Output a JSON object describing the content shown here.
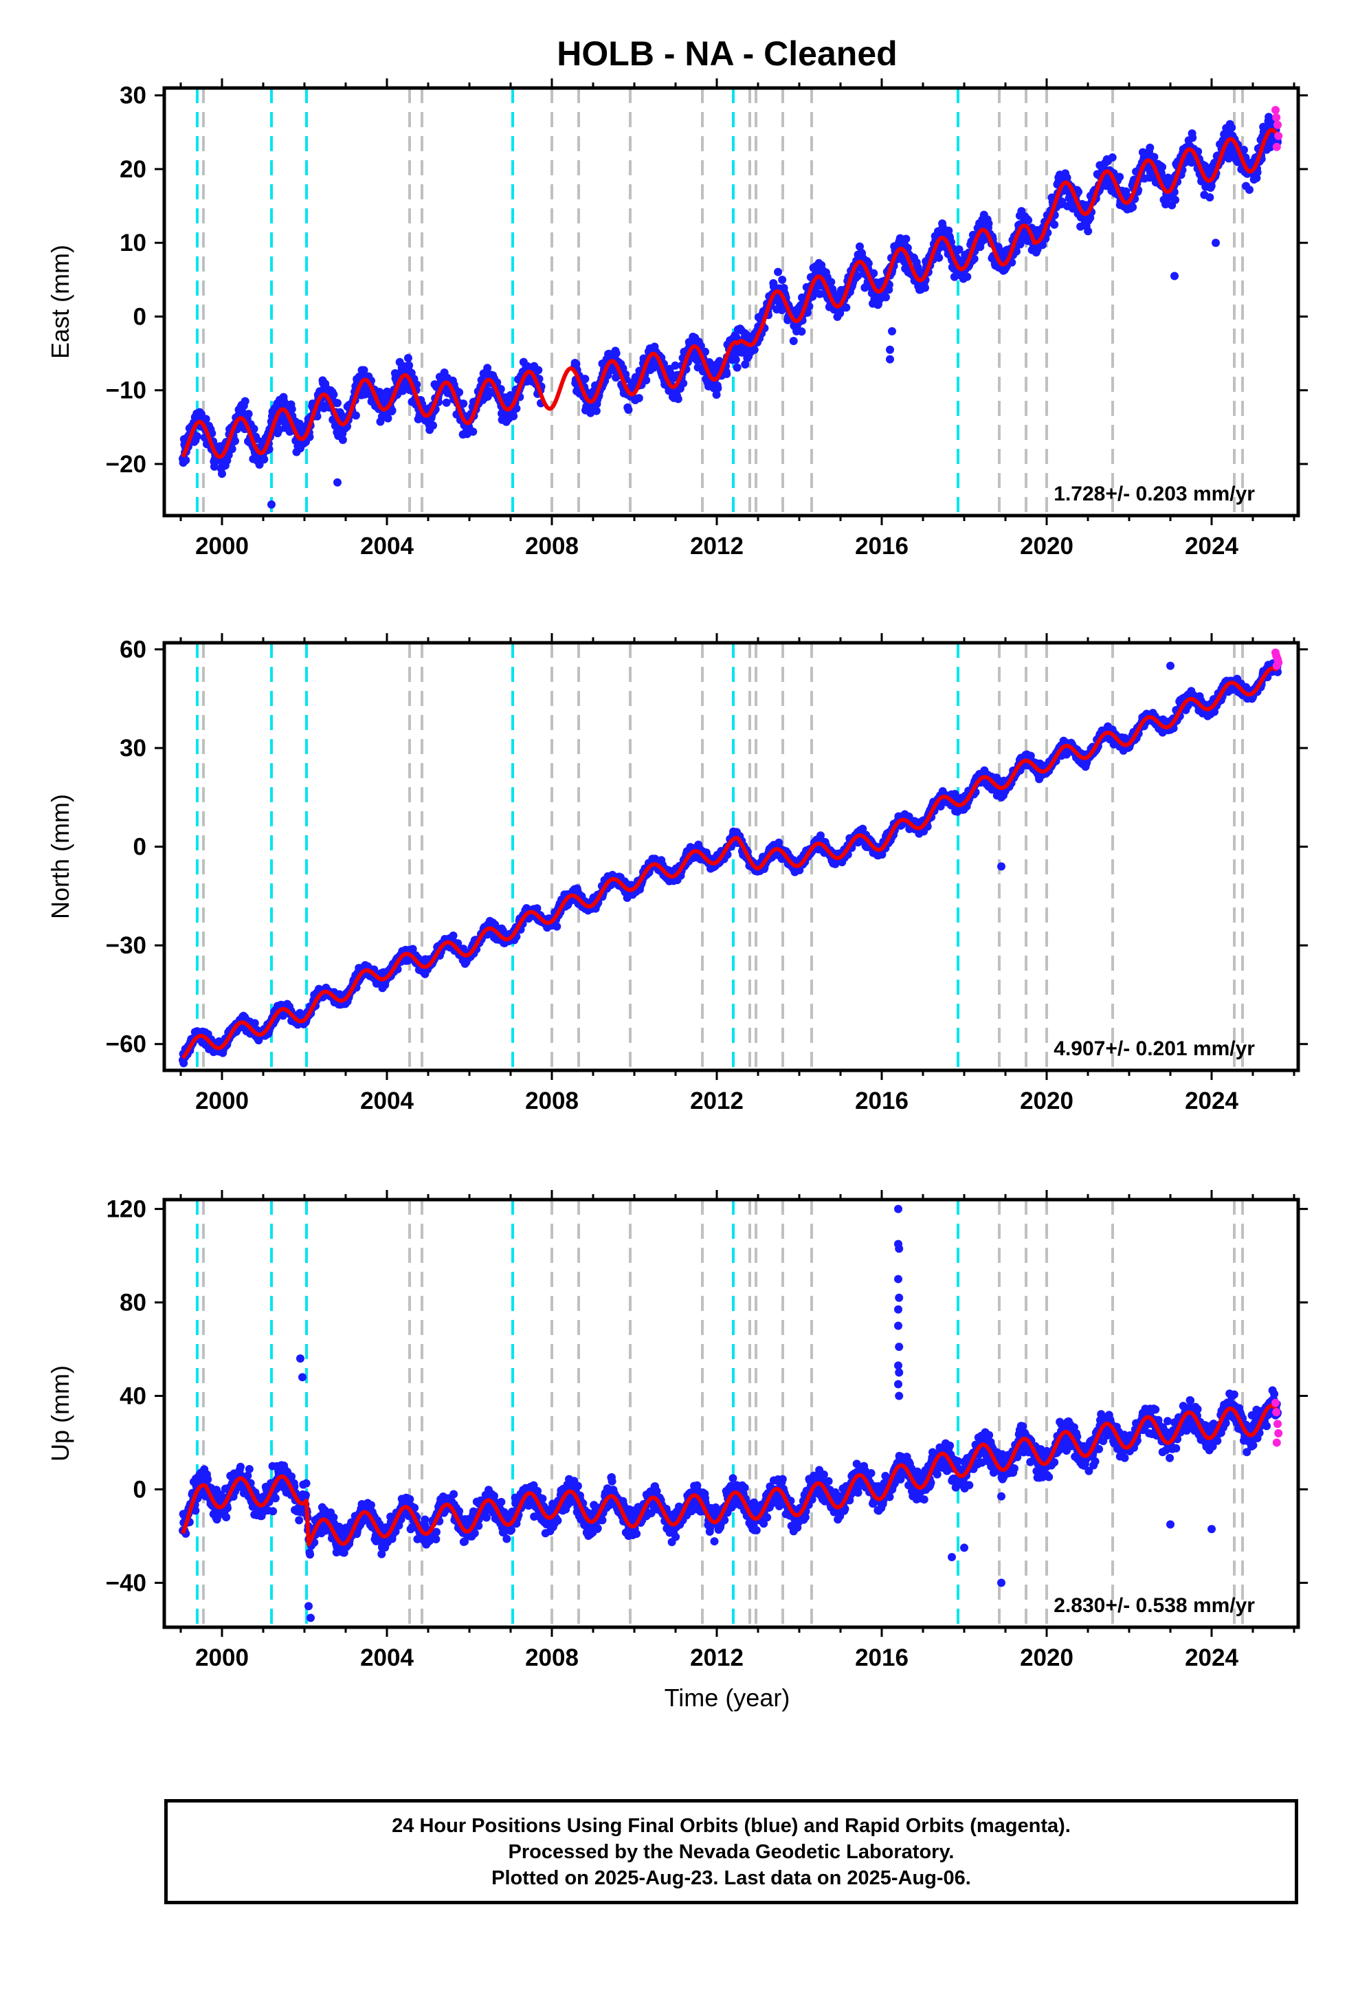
{
  "title": "HOLB  - NA - Cleaned",
  "x_axis_label": "Time (year)",
  "footer": {
    "line1": "24 Hour Positions Using Final Orbits (blue) and Rapid Orbits (magenta).",
    "line2": "Processed by the Nevada Geodetic Laboratory.",
    "line3": "Plotted on 2025-Aug-23. Last data on 2025-Aug-06."
  },
  "colors": {
    "final_orbits": "#1a1aff",
    "rapid_orbits": "#ff22dd",
    "model_fit": "#ee0000",
    "antenna_change_lines": "#00e5ee",
    "earthquake_lines": "#c0c0c0"
  },
  "chart_data": [
    {
      "type": "scatter",
      "component": "East",
      "ylabel": "East (mm)",
      "xlim": [
        1998.6,
        2026.1
      ],
      "ylim": [
        -27,
        31
      ],
      "xticks": [
        2000,
        2004,
        2008,
        2012,
        2016,
        2020,
        2024
      ],
      "yticks": [
        -20,
        -10,
        0,
        10,
        20,
        30
      ],
      "rate_label": "1.728+/- 0.203 mm/yr",
      "data_span": [
        1999.05,
        2025.6
      ],
      "trend_model": {
        "anchor_points": [
          [
            1999.05,
            -17
          ],
          [
            2001.0,
            -16
          ],
          [
            2002.0,
            -14
          ],
          [
            2004.0,
            -10
          ],
          [
            2006.0,
            -12
          ],
          [
            2007.0,
            -10
          ],
          [
            2008.0,
            -10
          ],
          [
            2010.0,
            -8
          ],
          [
            2012.0,
            -6
          ],
          [
            2012.5,
            -6
          ],
          [
            2013.0,
            0
          ],
          [
            2016.0,
            6
          ],
          [
            2018.0,
            9
          ],
          [
            2019.7,
            10
          ],
          [
            2020.0,
            15
          ],
          [
            2022.0,
            18
          ],
          [
            2024.0,
            21
          ],
          [
            2025.6,
            23
          ]
        ],
        "seasonal_amplitude": 2.5,
        "scatter_sd": 1.8
      },
      "outliers": [
        [
          2016.2,
          -5.8
        ],
        [
          2016.2,
          -4.5
        ],
        [
          2016.25,
          -2
        ],
        [
          2023.1,
          5.5
        ],
        [
          2024.1,
          10
        ],
        [
          2002.8,
          -22.5
        ],
        [
          2001.2,
          -25.5
        ]
      ],
      "rapid_points": [
        [
          2025.55,
          28
        ],
        [
          2025.57,
          27
        ],
        [
          2025.6,
          26
        ],
        [
          2025.62,
          24.5
        ],
        [
          2025.58,
          23
        ]
      ]
    },
    {
      "type": "scatter",
      "component": "North",
      "ylabel": "North (mm)",
      "xlim": [
        1998.6,
        2026.1
      ],
      "ylim": [
        -68,
        62
      ],
      "xticks": [
        2000,
        2004,
        2008,
        2012,
        2016,
        2020,
        2024
      ],
      "yticks": [
        -60,
        -30,
        0,
        30,
        60
      ],
      "rate_label": "4.907+/- 0.201 mm/yr",
      "data_span": [
        1999.05,
        2025.6
      ],
      "trend_model": {
        "anchor_points": [
          [
            1999.05,
            -62
          ],
          [
            2002.0,
            -50
          ],
          [
            2004.0,
            -37
          ],
          [
            2006.0,
            -30
          ],
          [
            2008.0,
            -20
          ],
          [
            2010.0,
            -10
          ],
          [
            2012.0,
            -2
          ],
          [
            2012.5,
            0
          ],
          [
            2013.0,
            -4
          ],
          [
            2014.0,
            -3
          ],
          [
            2016.0,
            2
          ],
          [
            2018.0,
            16
          ],
          [
            2020.0,
            26
          ],
          [
            2022.0,
            34
          ],
          [
            2024.0,
            45
          ],
          [
            2025.6,
            52
          ]
        ],
        "seasonal_amplitude": 2.8,
        "scatter_sd": 1.8
      },
      "outliers": [
        [
          2018.9,
          -6
        ],
        [
          2018.9,
          15
        ],
        [
          2023.0,
          55
        ]
      ],
      "rapid_points": [
        [
          2025.55,
          59
        ],
        [
          2025.57,
          58
        ],
        [
          2025.6,
          57
        ],
        [
          2025.62,
          56
        ],
        [
          2025.58,
          55
        ]
      ]
    },
    {
      "type": "scatter",
      "component": "Up",
      "ylabel": "Up (mm)",
      "xlim": [
        1998.6,
        2026.1
      ],
      "ylim": [
        -59,
        124
      ],
      "xticks": [
        2000,
        2004,
        2008,
        2012,
        2016,
        2020,
        2024
      ],
      "yticks": [
        -40,
        0,
        40,
        80,
        120
      ],
      "rate_label": "2.830+/- 0.538 mm/yr",
      "data_span": [
        1999.05,
        2025.6
      ],
      "trend_model": {
        "anchor_points": [
          [
            1999.05,
            -14
          ],
          [
            1999.6,
            -2
          ],
          [
            2002.05,
            0
          ],
          [
            2002.1,
            -20
          ],
          [
            2004.0,
            -14
          ],
          [
            2006.0,
            -12
          ],
          [
            2008.0,
            -6
          ],
          [
            2010.0,
            -10
          ],
          [
            2012.0,
            -8
          ],
          [
            2014.0,
            -5
          ],
          [
            2016.0,
            2
          ],
          [
            2018.0,
            12
          ],
          [
            2020.0,
            17
          ],
          [
            2022.0,
            24
          ],
          [
            2024.0,
            28
          ],
          [
            2025.6,
            30
          ]
        ],
        "seasonal_amplitude": 6,
        "scatter_sd": 5.5
      },
      "outliers": [
        [
          2016.4,
          120
        ],
        [
          2016.4,
          105
        ],
        [
          2016.42,
          103
        ],
        [
          2016.4,
          90
        ],
        [
          2016.42,
          82
        ],
        [
          2016.4,
          77
        ],
        [
          2016.4,
          70
        ],
        [
          2016.42,
          61
        ],
        [
          2016.4,
          53
        ],
        [
          2016.42,
          50
        ],
        [
          2016.4,
          45
        ],
        [
          2016.42,
          40
        ],
        [
          2001.9,
          56
        ],
        [
          2001.95,
          48
        ],
        [
          2002.1,
          -50
        ],
        [
          2002.15,
          -55
        ],
        [
          2018.9,
          -40
        ],
        [
          2018.0,
          -25
        ],
        [
          2017.7,
          -29
        ],
        [
          2023.0,
          -15
        ],
        [
          2024.0,
          -17
        ],
        [
          2018.9,
          -3
        ]
      ],
      "rapid_points": [
        [
          2025.55,
          37
        ],
        [
          2025.57,
          33
        ],
        [
          2025.6,
          28
        ],
        [
          2025.62,
          24
        ],
        [
          2025.58,
          20
        ]
      ]
    }
  ],
  "antenna_change_years": [
    1999.4,
    2001.2,
    2002.05,
    2007.05,
    2012.4,
    2017.85
  ],
  "earthquake_years": [
    1999.55,
    2004.55,
    2004.85,
    2008.0,
    2008.65,
    2009.9,
    2011.65,
    2012.8,
    2012.95,
    2013.6,
    2014.3,
    2018.85,
    2019.5,
    2020.0,
    2021.6,
    2024.55,
    2024.75
  ]
}
